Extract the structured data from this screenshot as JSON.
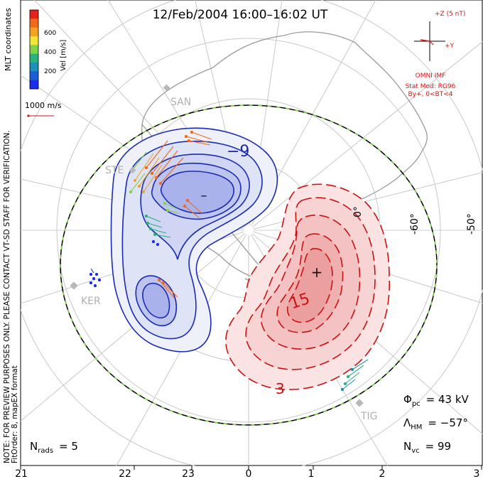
{
  "title": "12/Feb/2004  16:00–16:02 UT",
  "colorbar": {
    "ticks": [
      "600",
      "400",
      "200"
    ],
    "label": "Vel [m/s]",
    "colors": [
      "#e8201a",
      "#f06a18",
      "#f2a322",
      "#f2e53a",
      "#7fd34a",
      "#2bb27a",
      "#1f8fb5",
      "#1a5fd8",
      "#1a2bef"
    ]
  },
  "side_labels": {
    "mlt": "MLT coordinates",
    "vel_scale": "1000 m/s",
    "note_line1": "NOTE: FOR PREVIEW PURPOSES ONLY. PLEASE CONTACT VT-SD STAFF FOR VERIFICATION.",
    "note_line2": "FitOrder: 8, mapEX format"
  },
  "imf": {
    "z_label": "+Z (5 nT)",
    "y_label": "+Y",
    "source": "OMNI IMF",
    "model_line1": "Stat Mod: RG96",
    "model_line2": "By+,  0<BT<4",
    "color": "#dd1111"
  },
  "stations": [
    "SAN",
    "STE",
    "KER",
    "TIG"
  ],
  "lat_labels": [
    "-50°",
    "-60°",
    "0°"
  ],
  "contours": {
    "negative_label": "−9",
    "positive_labels": [
      "15",
      "3"
    ],
    "neg_color": "#1a2bb5",
    "pos_color": "#cc1111"
  },
  "stats": {
    "phi_pc": "Φ",
    "phi_pc_sub": "pc",
    "phi_pc_value": "= 43 kV",
    "lambda_hm": "Λ",
    "lambda_hm_sub": "HM",
    "lambda_hm_value": "= −57°",
    "n_vc": "N",
    "n_vc_sub": "vc",
    "n_vc_value": "= 99",
    "n_rads": "N",
    "n_rads_sub": "rads",
    "n_rads_value": "= 5"
  },
  "mlt_axis": [
    "21",
    "22",
    "23",
    "0",
    "1",
    "2",
    "3"
  ]
}
